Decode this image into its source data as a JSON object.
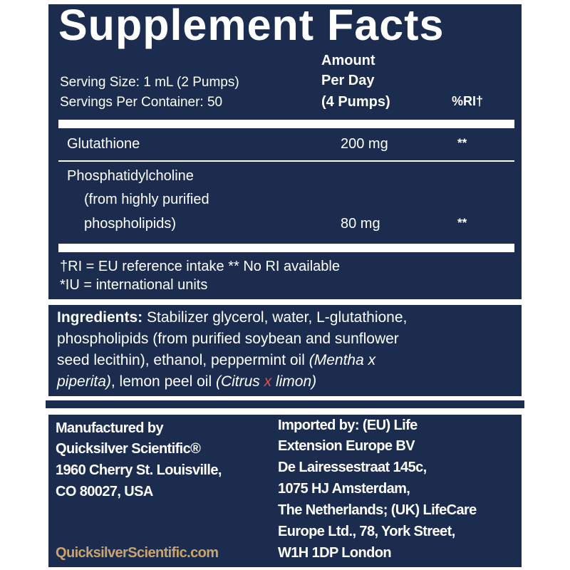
{
  "title": "Supplement Facts",
  "serving_size": "Serving Size: 1 mL (2 Pumps)",
  "servings_per_container": "Servings Per Container: 50",
  "columns": {
    "amount_line1": "Amount",
    "amount_line2": "Per Day",
    "amount_line3": "(4 Pumps)",
    "ri": "%RI†"
  },
  "rows": [
    {
      "name": "Glutathione",
      "amount": "200 mg",
      "ri": "**"
    },
    {
      "name_line1": "Phosphatidylcholine",
      "name_line2": "(from highly purified",
      "name_line3": "phospholipids)",
      "amount": "80 mg",
      "ri": "**"
    }
  ],
  "footnotes": [
    "†RI = EU reference intake ** No RI available",
    "*IU = international units"
  ],
  "ingredients": {
    "label": "Ingredients:",
    "line1": " Stabilizer glycerol, water, L-glutathione,",
    "line2": "phospholipids (from purified soybean and sunflower",
    "line3a": "seed lecithin), ethanol, peppermint oil ",
    "line3b": "(Mentha x",
    "line4a": "piperita)",
    "line4b": ", lemon peel oil ",
    "line4c": "(Citrus ",
    "line4d": "x",
    "line4e": " limon)"
  },
  "manufacturer": [
    "Manufactured by",
    "Quicksilver Scientific®",
    "1960 Cherry St. Louisville,",
    "CO 80027, USA"
  ],
  "website": "QuicksilverScientific.com",
  "importer": [
    "Imported by: (EU) Life",
    "Extension Europe BV",
    "De Lairessestraat 145c,",
    "1075 HJ Amsterdam,",
    "The Netherlands; (UK) LifeCare",
    "Europe Ltd., 78, York Street,",
    "W1H 1DP London"
  ],
  "colors": {
    "navy": "#1b2c4e",
    "website": "#c9a46e",
    "x_mark": "#d9534f"
  }
}
